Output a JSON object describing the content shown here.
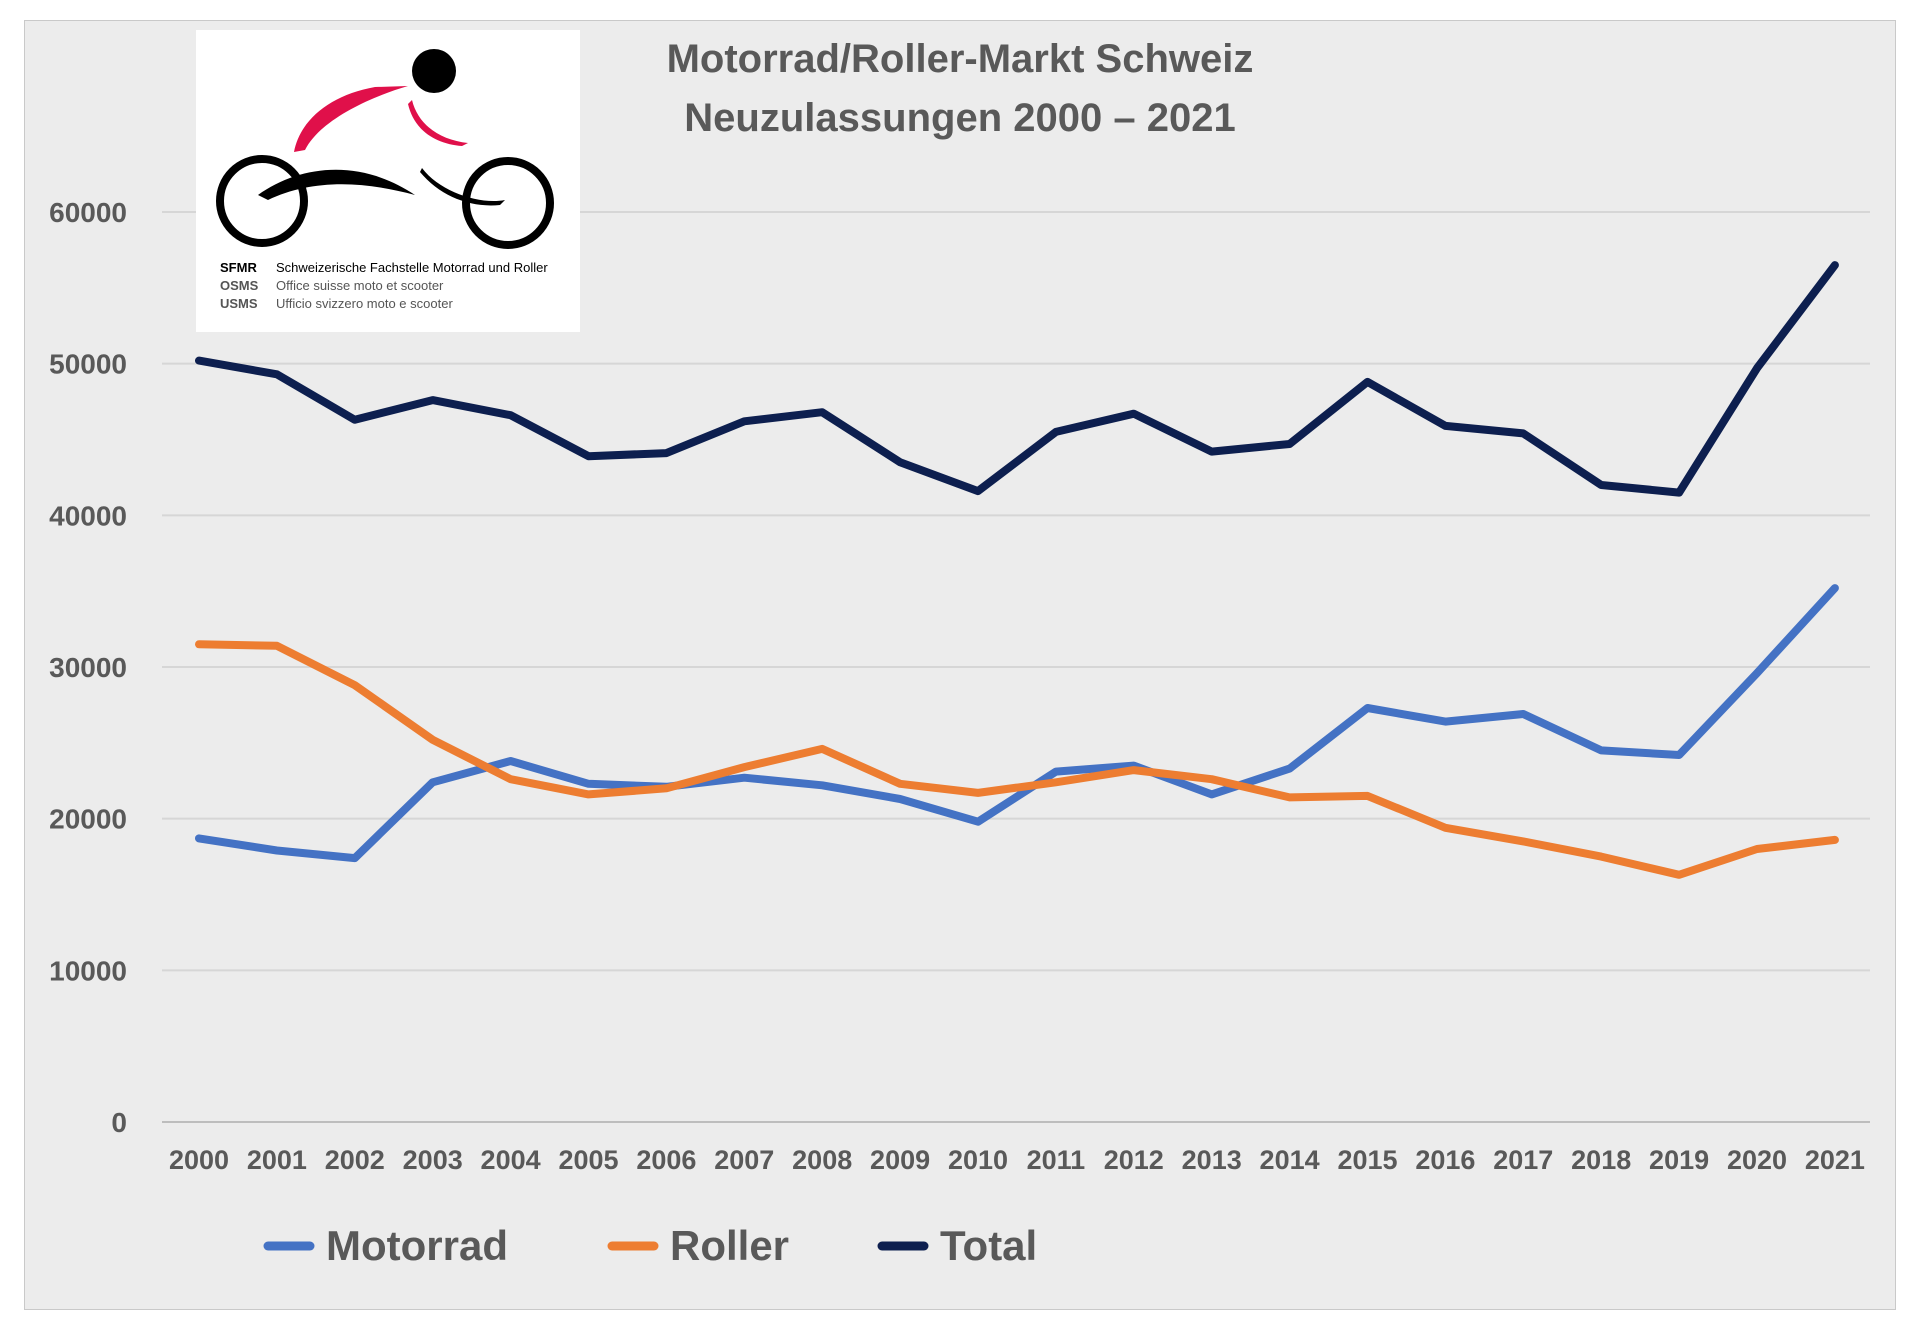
{
  "chart_data": {
    "type": "line",
    "title": [
      "Motorrad/Roller-Markt Schweiz",
      "Neuzulassungen 2000 – 2021"
    ],
    "categories": [
      "2000",
      "2001",
      "2002",
      "2003",
      "2004",
      "2005",
      "2006",
      "2007",
      "2008",
      "2009",
      "2010",
      "2011",
      "2012",
      "2013",
      "2014",
      "2015",
      "2016",
      "2017",
      "2018",
      "2019",
      "2020",
      "2021"
    ],
    "series": [
      {
        "name": "Motorrad",
        "color": "#4472c4",
        "values": [
          18700,
          17900,
          17400,
          22400,
          23800,
          22300,
          22100,
          22700,
          22200,
          21300,
          19800,
          23100,
          23500,
          21600,
          23300,
          27300,
          26400,
          26900,
          24500,
          24200,
          29600,
          35200
        ]
      },
      {
        "name": "Roller",
        "color": "#ed7d31",
        "values": [
          31500,
          31400,
          28800,
          25200,
          22600,
          21600,
          22000,
          23400,
          24600,
          22300,
          21700,
          22400,
          23200,
          22600,
          21400,
          21500,
          19400,
          18500,
          17500,
          16300,
          18000,
          18600
        ]
      },
      {
        "name": "Total",
        "color": "#0d1f4f",
        "values": [
          50200,
          49300,
          46300,
          47600,
          46600,
          43900,
          44100,
          46200,
          46800,
          43500,
          41600,
          45500,
          46700,
          44200,
          44700,
          48800,
          45900,
          45400,
          42000,
          41500,
          49700,
          56500
        ]
      }
    ],
    "yticks": [
      "0",
      "10000",
      "20000",
      "30000",
      "40000",
      "50000",
      "60000"
    ],
    "ylim": [
      0,
      60000
    ],
    "grid": true,
    "legend": "bottom"
  },
  "logo": {
    "rows": [
      {
        "abbr": "SFMR",
        "name": "Schweizerische Fachstelle Motorrad und Roller"
      },
      {
        "abbr": "OSMS",
        "name": "Office suisse moto et scooter"
      },
      {
        "abbr": "USMS",
        "name": "Ufficio svizzero moto e scooter"
      }
    ]
  }
}
